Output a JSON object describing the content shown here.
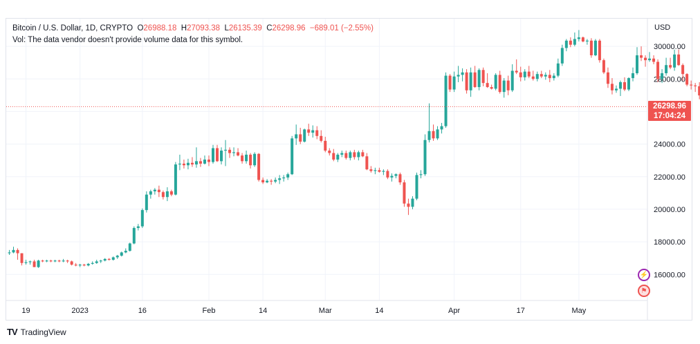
{
  "legend": {
    "symbol": "Bitcoin / U.S. Dollar, 1D, CRYPTO",
    "open_label": "O",
    "open": "26988.18",
    "high_label": "H",
    "high": "27093.38",
    "low_label": "L",
    "low": "26135.39",
    "close_label": "C",
    "close": "26298.96",
    "change": "−689.01 (−2.55%)",
    "vol_note": "Vol: The data vendor doesn't provide volume data for this symbol."
  },
  "price_axis": {
    "currency": "USD"
  },
  "last_price": {
    "value": "26298.96",
    "countdown": "17:04:24"
  },
  "footer": {
    "brand_logo": "TV",
    "brand_text": "TradingView"
  },
  "colors": {
    "up": "#26a69a",
    "down": "#ef5350",
    "grid": "#f0f3fa",
    "axis_text": "#131722"
  },
  "icons": {
    "badge_top": "lightning-bolt-icon",
    "badge_bottom": "flag-icon"
  },
  "chart_data": {
    "type": "candlestick",
    "title": "Bitcoin / U.S. Dollar, 1D, CRYPTO",
    "ylim": [
      14400,
      31700
    ],
    "y_ticks": [
      16000,
      18000,
      20000,
      22000,
      24000,
      26000,
      28000,
      30000
    ],
    "y_tick_labels": [
      "16000.00",
      "18000.00",
      "20000.00",
      "22000.00",
      "24000.00",
      "26000.00",
      "28000.00",
      "30000.00"
    ],
    "x_ticks": [
      {
        "index": 4,
        "label": "19"
      },
      {
        "index": 17,
        "label": "2023"
      },
      {
        "index": 32,
        "label": "16"
      },
      {
        "index": 48,
        "label": "Feb"
      },
      {
        "index": 61,
        "label": "14"
      },
      {
        "index": 76,
        "label": "Mar"
      },
      {
        "index": 89,
        "label": "14"
      },
      {
        "index": 107,
        "label": "Apr"
      },
      {
        "index": 123,
        "label": "17"
      },
      {
        "index": 137,
        "label": "May"
      }
    ],
    "last_price_line": 26298.96,
    "grid": true,
    "candles": [
      {
        "o": 17300,
        "h": 17500,
        "l": 17200,
        "c": 17350
      },
      {
        "o": 17350,
        "h": 17700,
        "l": 17300,
        "c": 17500
      },
      {
        "o": 17500,
        "h": 17600,
        "l": 16900,
        "c": 17300
      },
      {
        "o": 17300,
        "h": 17300,
        "l": 16550,
        "c": 16700
      },
      {
        "o": 16700,
        "h": 16900,
        "l": 16600,
        "c": 16750
      },
      {
        "o": 16750,
        "h": 16850,
        "l": 16600,
        "c": 16800
      },
      {
        "o": 16800,
        "h": 16900,
        "l": 16450,
        "c": 16450
      },
      {
        "o": 16450,
        "h": 16900,
        "l": 16400,
        "c": 16850
      },
      {
        "o": 16850,
        "h": 16900,
        "l": 16750,
        "c": 16800
      },
      {
        "o": 16800,
        "h": 16900,
        "l": 16750,
        "c": 16850
      },
      {
        "o": 16850,
        "h": 16900,
        "l": 16750,
        "c": 16800
      },
      {
        "o": 16800,
        "h": 16900,
        "l": 16750,
        "c": 16850
      },
      {
        "o": 16850,
        "h": 16900,
        "l": 16750,
        "c": 16800
      },
      {
        "o": 16800,
        "h": 16950,
        "l": 16750,
        "c": 16850
      },
      {
        "o": 16850,
        "h": 16900,
        "l": 16700,
        "c": 16800
      },
      {
        "o": 16800,
        "h": 16850,
        "l": 16550,
        "c": 16600
      },
      {
        "o": 16600,
        "h": 16700,
        "l": 16500,
        "c": 16550
      },
      {
        "o": 16550,
        "h": 16650,
        "l": 16450,
        "c": 16600
      },
      {
        "o": 16600,
        "h": 16650,
        "l": 16500,
        "c": 16550
      },
      {
        "o": 16550,
        "h": 16700,
        "l": 16500,
        "c": 16650
      },
      {
        "o": 16650,
        "h": 16800,
        "l": 16600,
        "c": 16700
      },
      {
        "o": 16700,
        "h": 16900,
        "l": 16650,
        "c": 16800
      },
      {
        "o": 16800,
        "h": 16900,
        "l": 16700,
        "c": 16850
      },
      {
        "o": 16850,
        "h": 17000,
        "l": 16800,
        "c": 16950
      },
      {
        "o": 16950,
        "h": 17000,
        "l": 16850,
        "c": 16900
      },
      {
        "o": 16900,
        "h": 17100,
        "l": 16850,
        "c": 17050
      },
      {
        "o": 17050,
        "h": 17200,
        "l": 16950,
        "c": 17150
      },
      {
        "o": 17150,
        "h": 17400,
        "l": 17100,
        "c": 17350
      },
      {
        "o": 17350,
        "h": 17600,
        "l": 17300,
        "c": 17450
      },
      {
        "o": 17450,
        "h": 17950,
        "l": 17400,
        "c": 17900
      },
      {
        "o": 17900,
        "h": 18950,
        "l": 17850,
        "c": 18850
      },
      {
        "o": 18850,
        "h": 19100,
        "l": 18700,
        "c": 18950
      },
      {
        "o": 18950,
        "h": 20050,
        "l": 18850,
        "c": 19950
      },
      {
        "o": 19950,
        "h": 21100,
        "l": 19800,
        "c": 20900
      },
      {
        "o": 20900,
        "h": 21200,
        "l": 20650,
        "c": 21100
      },
      {
        "o": 21100,
        "h": 21300,
        "l": 20900,
        "c": 21200
      },
      {
        "o": 21200,
        "h": 21450,
        "l": 20750,
        "c": 21050
      },
      {
        "o": 21050,
        "h": 21150,
        "l": 20600,
        "c": 20750
      },
      {
        "o": 20750,
        "h": 21350,
        "l": 20500,
        "c": 21100
      },
      {
        "o": 21100,
        "h": 21200,
        "l": 20800,
        "c": 20900
      },
      {
        "o": 20900,
        "h": 22900,
        "l": 20850,
        "c": 22750
      },
      {
        "o": 22750,
        "h": 23350,
        "l": 22400,
        "c": 22800
      },
      {
        "o": 22800,
        "h": 23050,
        "l": 22500,
        "c": 22700
      },
      {
        "o": 22700,
        "h": 23100,
        "l": 22450,
        "c": 22850
      },
      {
        "o": 22850,
        "h": 23200,
        "l": 22600,
        "c": 22750
      },
      {
        "o": 22750,
        "h": 23800,
        "l": 22550,
        "c": 22950
      },
      {
        "o": 22950,
        "h": 23150,
        "l": 22600,
        "c": 22800
      },
      {
        "o": 22800,
        "h": 23300,
        "l": 22750,
        "c": 23050
      },
      {
        "o": 23050,
        "h": 23300,
        "l": 22650,
        "c": 22900
      },
      {
        "o": 22900,
        "h": 23950,
        "l": 22800,
        "c": 23750
      },
      {
        "o": 23750,
        "h": 23950,
        "l": 22900,
        "c": 22950
      },
      {
        "o": 22950,
        "h": 23800,
        "l": 22750,
        "c": 23600
      },
      {
        "o": 23600,
        "h": 24250,
        "l": 22650,
        "c": 23650
      },
      {
        "o": 23650,
        "h": 23800,
        "l": 23150,
        "c": 23450
      },
      {
        "o": 23450,
        "h": 23800,
        "l": 23250,
        "c": 23500
      },
      {
        "o": 23500,
        "h": 23750,
        "l": 23250,
        "c": 23300
      },
      {
        "o": 23300,
        "h": 23450,
        "l": 22800,
        "c": 22950
      },
      {
        "o": 22950,
        "h": 23600,
        "l": 22800,
        "c": 23350
      },
      {
        "o": 23350,
        "h": 23450,
        "l": 22500,
        "c": 22700
      },
      {
        "o": 22700,
        "h": 23500,
        "l": 22600,
        "c": 23400
      },
      {
        "o": 23400,
        "h": 23450,
        "l": 21700,
        "c": 21800
      },
      {
        "o": 21800,
        "h": 21950,
        "l": 21550,
        "c": 21650
      },
      {
        "o": 21650,
        "h": 21850,
        "l": 21600,
        "c": 21750
      },
      {
        "o": 21750,
        "h": 21850,
        "l": 21500,
        "c": 21700
      },
      {
        "o": 21700,
        "h": 21950,
        "l": 21600,
        "c": 21800
      },
      {
        "o": 21800,
        "h": 22100,
        "l": 21550,
        "c": 21900
      },
      {
        "o": 21900,
        "h": 22100,
        "l": 21700,
        "c": 21950
      },
      {
        "o": 21950,
        "h": 22250,
        "l": 21800,
        "c": 22150
      },
      {
        "o": 22150,
        "h": 24500,
        "l": 22100,
        "c": 24350
      },
      {
        "o": 24350,
        "h": 25200,
        "l": 23950,
        "c": 24600
      },
      {
        "o": 24600,
        "h": 25000,
        "l": 24000,
        "c": 24150
      },
      {
        "o": 24150,
        "h": 24950,
        "l": 24100,
        "c": 24900
      },
      {
        "o": 24900,
        "h": 25250,
        "l": 24500,
        "c": 24700
      },
      {
        "o": 24700,
        "h": 25150,
        "l": 24400,
        "c": 24850
      },
      {
        "o": 24850,
        "h": 25100,
        "l": 24300,
        "c": 24500
      },
      {
        "o": 24500,
        "h": 24850,
        "l": 24100,
        "c": 24200
      },
      {
        "o": 24200,
        "h": 24450,
        "l": 23500,
        "c": 23600
      },
      {
        "o": 23600,
        "h": 23750,
        "l": 23300,
        "c": 23450
      },
      {
        "o": 23450,
        "h": 23700,
        "l": 22950,
        "c": 23050
      },
      {
        "o": 23050,
        "h": 23450,
        "l": 22900,
        "c": 23350
      },
      {
        "o": 23350,
        "h": 23600,
        "l": 23200,
        "c": 23450
      },
      {
        "o": 23450,
        "h": 23600,
        "l": 23050,
        "c": 23150
      },
      {
        "o": 23150,
        "h": 23600,
        "l": 23000,
        "c": 23500
      },
      {
        "o": 23500,
        "h": 23650,
        "l": 23050,
        "c": 23200
      },
      {
        "o": 23200,
        "h": 23600,
        "l": 23000,
        "c": 23500
      },
      {
        "o": 23500,
        "h": 23650,
        "l": 23200,
        "c": 23250
      },
      {
        "o": 23250,
        "h": 23450,
        "l": 22400,
        "c": 22450
      },
      {
        "o": 22450,
        "h": 22650,
        "l": 22250,
        "c": 22350
      },
      {
        "o": 22350,
        "h": 22550,
        "l": 22150,
        "c": 22400
      },
      {
        "o": 22400,
        "h": 22550,
        "l": 22250,
        "c": 22300
      },
      {
        "o": 22300,
        "h": 22450,
        "l": 22100,
        "c": 22350
      },
      {
        "o": 22350,
        "h": 22450,
        "l": 21850,
        "c": 21950
      },
      {
        "o": 21950,
        "h": 22200,
        "l": 21700,
        "c": 22050
      },
      {
        "o": 22050,
        "h": 22200,
        "l": 21900,
        "c": 22150
      },
      {
        "o": 22150,
        "h": 22250,
        "l": 21500,
        "c": 21650
      },
      {
        "o": 21650,
        "h": 21800,
        "l": 20150,
        "c": 20350
      },
      {
        "o": 20350,
        "h": 20650,
        "l": 19650,
        "c": 20150
      },
      {
        "o": 20150,
        "h": 20800,
        "l": 20000,
        "c": 20650
      },
      {
        "o": 20650,
        "h": 22250,
        "l": 20550,
        "c": 22100
      },
      {
        "o": 22100,
        "h": 22400,
        "l": 21900,
        "c": 22150
      },
      {
        "o": 22150,
        "h": 24600,
        "l": 22050,
        "c": 24250
      },
      {
        "o": 24250,
        "h": 26500,
        "l": 24100,
        "c": 24800
      },
      {
        "o": 24800,
        "h": 25200,
        "l": 24200,
        "c": 24350
      },
      {
        "o": 24350,
        "h": 25100,
        "l": 24250,
        "c": 24900
      },
      {
        "o": 24900,
        "h": 25300,
        "l": 24650,
        "c": 25100
      },
      {
        "o": 25100,
        "h": 28400,
        "l": 25000,
        "c": 28200
      },
      {
        "o": 28200,
        "h": 28300,
        "l": 27200,
        "c": 27350
      },
      {
        "o": 27350,
        "h": 28450,
        "l": 27200,
        "c": 28150
      },
      {
        "o": 28150,
        "h": 28800,
        "l": 27800,
        "c": 28250
      },
      {
        "o": 28250,
        "h": 28650,
        "l": 27850,
        "c": 28400
      },
      {
        "o": 28400,
        "h": 28600,
        "l": 27100,
        "c": 27300
      },
      {
        "o": 27300,
        "h": 28700,
        "l": 26900,
        "c": 28400
      },
      {
        "o": 28400,
        "h": 28800,
        "l": 27450,
        "c": 27500
      },
      {
        "o": 27500,
        "h": 28650,
        "l": 27300,
        "c": 28550
      },
      {
        "o": 28550,
        "h": 28700,
        "l": 27550,
        "c": 27750
      },
      {
        "o": 27750,
        "h": 28350,
        "l": 27450,
        "c": 27500
      },
      {
        "o": 27500,
        "h": 27650,
        "l": 27350,
        "c": 27400
      },
      {
        "o": 27400,
        "h": 28350,
        "l": 27300,
        "c": 28250
      },
      {
        "o": 28250,
        "h": 28500,
        "l": 27100,
        "c": 27200
      },
      {
        "o": 27200,
        "h": 28050,
        "l": 26850,
        "c": 27900
      },
      {
        "o": 27900,
        "h": 28200,
        "l": 27000,
        "c": 27300
      },
      {
        "o": 27300,
        "h": 28900,
        "l": 27200,
        "c": 28500
      },
      {
        "o": 28500,
        "h": 29200,
        "l": 28300,
        "c": 28400
      },
      {
        "o": 28400,
        "h": 28750,
        "l": 27850,
        "c": 28100
      },
      {
        "o": 28100,
        "h": 28600,
        "l": 27900,
        "c": 28450
      },
      {
        "o": 28450,
        "h": 28800,
        "l": 28050,
        "c": 28150
      },
      {
        "o": 28150,
        "h": 28500,
        "l": 27900,
        "c": 28000
      },
      {
        "o": 28000,
        "h": 28450,
        "l": 27850,
        "c": 28300
      },
      {
        "o": 28300,
        "h": 28500,
        "l": 28050,
        "c": 28150
      },
      {
        "o": 28150,
        "h": 28400,
        "l": 27950,
        "c": 28250
      },
      {
        "o": 28250,
        "h": 28550,
        "l": 27800,
        "c": 28050
      },
      {
        "o": 28050,
        "h": 28350,
        "l": 27900,
        "c": 28200
      },
      {
        "o": 28200,
        "h": 29250,
        "l": 28100,
        "c": 28950
      },
      {
        "o": 28950,
        "h": 30100,
        "l": 28800,
        "c": 29900
      },
      {
        "o": 29900,
        "h": 30450,
        "l": 29700,
        "c": 30350
      },
      {
        "o": 30350,
        "h": 30550,
        "l": 29950,
        "c": 30100
      },
      {
        "o": 30100,
        "h": 30850,
        "l": 30000,
        "c": 30450
      },
      {
        "o": 30450,
        "h": 31000,
        "l": 30300,
        "c": 30550
      },
      {
        "o": 30550,
        "h": 30600,
        "l": 30250,
        "c": 30300
      },
      {
        "o": 30300,
        "h": 30450,
        "l": 30100,
        "c": 30350
      },
      {
        "o": 30350,
        "h": 30500,
        "l": 29300,
        "c": 29450
      },
      {
        "o": 29450,
        "h": 30450,
        "l": 29400,
        "c": 30350
      },
      {
        "o": 30350,
        "h": 30450,
        "l": 29000,
        "c": 29150
      },
      {
        "o": 29150,
        "h": 29250,
        "l": 28300,
        "c": 28400
      },
      {
        "o": 28400,
        "h": 28700,
        "l": 27450,
        "c": 27700
      },
      {
        "o": 27700,
        "h": 28050,
        "l": 27050,
        "c": 27300
      },
      {
        "o": 27300,
        "h": 27600,
        "l": 27150,
        "c": 27400
      },
      {
        "o": 27400,
        "h": 27900,
        "l": 26950,
        "c": 27800
      },
      {
        "o": 27800,
        "h": 28100,
        "l": 27250,
        "c": 27350
      },
      {
        "o": 27350,
        "h": 28100,
        "l": 27250,
        "c": 28050
      },
      {
        "o": 28050,
        "h": 28700,
        "l": 27850,
        "c": 28350
      },
      {
        "o": 28350,
        "h": 29950,
        "l": 28250,
        "c": 29450
      },
      {
        "o": 29450,
        "h": 30000,
        "l": 29100,
        "c": 29300
      },
      {
        "o": 29300,
        "h": 29450,
        "l": 28750,
        "c": 29150
      },
      {
        "o": 29150,
        "h": 29650,
        "l": 29050,
        "c": 29250
      },
      {
        "o": 29250,
        "h": 29450,
        "l": 28900,
        "c": 29050
      },
      {
        "o": 29050,
        "h": 29200,
        "l": 27800,
        "c": 28000
      },
      {
        "o": 28000,
        "h": 28600,
        "l": 27750,
        "c": 28350
      },
      {
        "o": 28350,
        "h": 29300,
        "l": 28200,
        "c": 28850
      },
      {
        "o": 28850,
        "h": 29300,
        "l": 28600,
        "c": 28700
      },
      {
        "o": 28700,
        "h": 29800,
        "l": 28500,
        "c": 29500
      },
      {
        "o": 29500,
        "h": 29800,
        "l": 28800,
        "c": 28850
      },
      {
        "o": 28850,
        "h": 28950,
        "l": 27900,
        "c": 28300
      },
      {
        "o": 28300,
        "h": 28350,
        "l": 27550,
        "c": 27650
      },
      {
        "o": 27650,
        "h": 27900,
        "l": 27350,
        "c": 27600
      },
      {
        "o": 27600,
        "h": 27750,
        "l": 27200,
        "c": 27550
      },
      {
        "o": 27550,
        "h": 27800,
        "l": 26750,
        "c": 26988
      },
      {
        "o": 26988.18,
        "h": 27093.38,
        "l": 26135.39,
        "c": 26298.96
      }
    ]
  }
}
